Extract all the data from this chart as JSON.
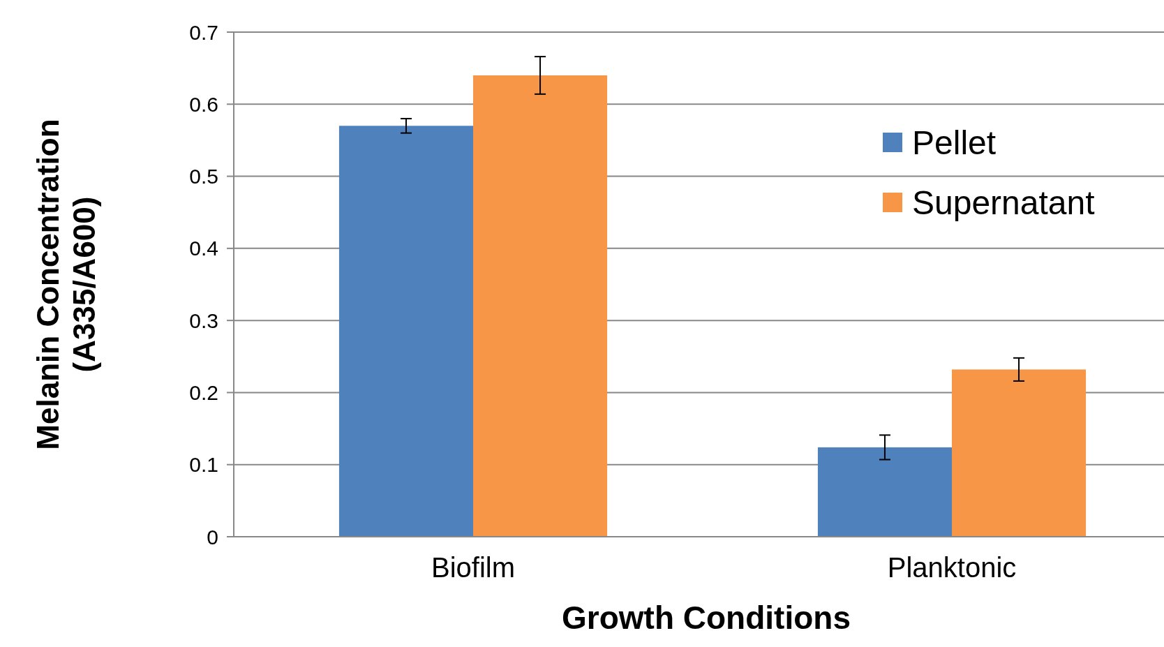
{
  "chart_data": {
    "type": "bar",
    "xlabel": "Growth Conditions",
    "ylabel": "Melanin Concentration\n(A335/A600)",
    "categories": [
      "Biofilm",
      "Planktonic"
    ],
    "series": [
      {
        "name": "Pellet",
        "color": "#4f81bd",
        "values": [
          0.57,
          0.124
        ],
        "errors": [
          0.01,
          0.017
        ]
      },
      {
        "name": "Supernatant",
        "color": "#f79646",
        "values": [
          0.64,
          0.232
        ],
        "errors": [
          0.026,
          0.016
        ]
      }
    ],
    "ylim": [
      0,
      0.7
    ],
    "yticks": [
      0,
      0.1,
      0.2,
      0.3,
      0.4,
      0.5,
      0.6,
      0.7
    ],
    "grid": "y",
    "legend": "top right"
  }
}
